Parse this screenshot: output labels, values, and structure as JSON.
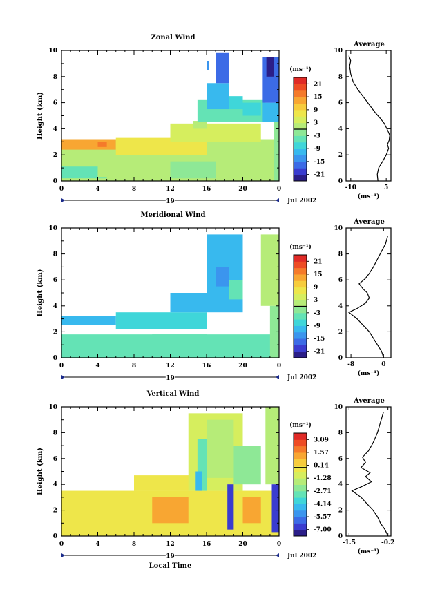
{
  "chart_data": [
    {
      "type": "heatmap",
      "title": "Zonal Wind",
      "ylabel": "Height (km)",
      "xlabel": "",
      "ylim": [
        0,
        10
      ],
      "yticks": [
        "0",
        "2",
        "4",
        "6",
        "8",
        "10"
      ],
      "xlim": [
        0,
        24
      ],
      "xticks": [
        "0",
        "4",
        "8",
        "12",
        "16",
        "20",
        "0"
      ],
      "day_label": "19",
      "date_label": "Jul 2002",
      "colorbar": {
        "unit": "(ms⁻¹)",
        "range": [
          -24,
          24
        ],
        "ticks": [
          "21",
          "15",
          "9",
          "3",
          "-3",
          "-9",
          "-15",
          "-21"
        ],
        "colors": [
          "#2b1e88",
          "#3a3ccf",
          "#3c6be6",
          "#3b95ee",
          "#38b9ee",
          "#3fd6d9",
          "#64e3b5",
          "#8ee896",
          "#b6ec78",
          "#d6ee5e",
          "#eee64a",
          "#f7cc3c",
          "#f8a632",
          "#f57a2a",
          "#ee4c24",
          "#e02a26"
        ]
      },
      "features": [
        {
          "x0": 0,
          "x1": 24,
          "y0": 0,
          "y1": 3.2,
          "v": 2
        },
        {
          "x0": 0,
          "x1": 5,
          "y0": 0.2,
          "y1": 1.1,
          "v": -4
        },
        {
          "x0": 4,
          "x1": 12,
          "y0": 0.3,
          "y1": 1.3,
          "v": 0
        },
        {
          "x0": 12,
          "x1": 17,
          "y0": 0.2,
          "y1": 1.5,
          "v": -1
        },
        {
          "x0": 0,
          "x1": 6,
          "y0": 2.4,
          "y1": 3.2,
          "v": 12
        },
        {
          "x0": 4,
          "x1": 5,
          "y0": 2.6,
          "y1": 3.0,
          "v": 15
        },
        {
          "x0": 6,
          "x1": 16,
          "y0": 2,
          "y1": 3.3,
          "v": 6
        },
        {
          "x0": 12,
          "x1": 22,
          "y0": 3,
          "y1": 4.4,
          "v": 4
        },
        {
          "x0": 14.5,
          "x1": 16,
          "y0": 4,
          "y1": 4.6,
          "v": 2
        },
        {
          "x0": 15,
          "x1": 22.5,
          "y0": 4.5,
          "y1": 6.2,
          "v": -6
        },
        {
          "x0": 16,
          "x1": 18.5,
          "y0": 5.5,
          "y1": 7.5,
          "v": -12
        },
        {
          "x0": 17,
          "x1": 18.5,
          "y0": 7.5,
          "y1": 9.8,
          "v": -17
        },
        {
          "x0": 16,
          "x1": 16.3,
          "y0": 8.5,
          "y1": 9.2,
          "v": -15
        },
        {
          "x0": 18.5,
          "x1": 20,
          "y0": 5.5,
          "y1": 6.5,
          "v": -9
        },
        {
          "x0": 20,
          "x1": 22,
          "y0": 5,
          "y1": 6,
          "v": -8
        },
        {
          "x0": 22.2,
          "x1": 24,
          "y0": 4.5,
          "y1": 6,
          "v": -12
        },
        {
          "x0": 22.2,
          "x1": 24,
          "y0": 6,
          "y1": 9.5,
          "v": -18
        },
        {
          "x0": 22.6,
          "x1": 23.4,
          "y0": 8,
          "y1": 9.5,
          "v": -22
        },
        {
          "x0": 23.4,
          "x1": 24,
          "y0": 0,
          "y1": 4.5,
          "v": -3
        }
      ]
    },
    {
      "type": "heatmap",
      "title": "Meridional Wind",
      "ylabel": "Height (km)",
      "xlabel": "",
      "ylim": [
        0,
        10
      ],
      "yticks": [
        "0",
        "2",
        "4",
        "6",
        "8",
        "10"
      ],
      "xlim": [
        0,
        24
      ],
      "xticks": [
        "0",
        "4",
        "8",
        "12",
        "16",
        "20",
        "0"
      ],
      "day_label": "19",
      "date_label": "Jul 2002",
      "colorbar": {
        "unit": "(ms⁻¹)",
        "range": [
          -24,
          24
        ],
        "ticks": [
          "21",
          "15",
          "9",
          "3",
          "-3",
          "-9",
          "-15",
          "-21"
        ],
        "colors": [
          "#2b1e88",
          "#3a3ccf",
          "#3c6be6",
          "#3b95ee",
          "#38b9ee",
          "#3fd6d9",
          "#64e3b5",
          "#8ee896",
          "#b6ec78",
          "#d6ee5e",
          "#eee64a",
          "#f7cc3c",
          "#f8a632",
          "#f57a2a",
          "#ee4c24",
          "#e02a26"
        ]
      },
      "features": [
        {
          "x0": 0,
          "x1": 24,
          "y0": 0,
          "y1": 1.8,
          "v": -5
        },
        {
          "x0": 0,
          "x1": 6,
          "y0": 2.5,
          "y1": 3.2,
          "v": -12
        },
        {
          "x0": 6,
          "x1": 16,
          "y0": 2.2,
          "y1": 3.5,
          "v": -9
        },
        {
          "x0": 10,
          "x1": 16,
          "y0": 0.3,
          "y1": 1.8,
          "v": -4
        },
        {
          "x0": 12,
          "x1": 16,
          "y0": 3.5,
          "y1": 5,
          "v": -10
        },
        {
          "x0": 16,
          "x1": 20,
          "y0": 3.5,
          "y1": 9.5,
          "v": -10
        },
        {
          "x0": 17,
          "x1": 18.5,
          "y0": 5.5,
          "y1": 7,
          "v": -15
        },
        {
          "x0": 18.5,
          "x1": 20,
          "y0": 4.5,
          "y1": 6,
          "v": -6
        },
        {
          "x0": 22,
          "x1": 24,
          "y0": 4,
          "y1": 9.5,
          "v": 0
        },
        {
          "x0": 23,
          "x1": 24,
          "y0": 0,
          "y1": 4,
          "v": -3
        }
      ]
    },
    {
      "type": "heatmap",
      "title": "Vertical Wind",
      "ylabel": "Height (km)",
      "xlabel": "Local Time",
      "ylim": [
        0,
        10
      ],
      "yticks": [
        "0",
        "2",
        "4",
        "6",
        "8",
        "10"
      ],
      "xlim": [
        0,
        24
      ],
      "xticks": [
        "0",
        "4",
        "8",
        "12",
        "16",
        "20",
        "0"
      ],
      "day_label": "19",
      "date_label": "Jul 2002",
      "colorbar": {
        "unit": "(ms⁻¹)",
        "range": [
          -7.8,
          3.9
        ],
        "ticks": [
          "3.09",
          "1.57",
          "0.14",
          "-1.28",
          "-2.71",
          "-4.14",
          "-5.57",
          "-7.00"
        ],
        "colors": [
          "#2b1e88",
          "#3a3ccf",
          "#3c6be6",
          "#3b95ee",
          "#38b9ee",
          "#3fd6d9",
          "#64e3b5",
          "#8ee896",
          "#b6ec78",
          "#d6ee5e",
          "#eee64a",
          "#f7cc3c",
          "#f8a632",
          "#f57a2a",
          "#ee4c24",
          "#e02a26"
        ]
      },
      "features": [
        {
          "x0": 0,
          "x1": 24,
          "y0": 0,
          "y1": 3.5,
          "v": 0.2
        },
        {
          "x0": 8,
          "x1": 16,
          "y0": 3.5,
          "y1": 4.7,
          "v": 0
        },
        {
          "x0": 10,
          "x1": 14,
          "y0": 1,
          "y1": 3,
          "v": 1
        },
        {
          "x0": 14,
          "x1": 20,
          "y0": 3.5,
          "y1": 9.5,
          "v": -1.2
        },
        {
          "x0": 15,
          "x1": 16,
          "y0": 3.5,
          "y1": 7.5,
          "v": -3
        },
        {
          "x0": 16,
          "x1": 19,
          "y0": 4.5,
          "y1": 9,
          "v": -1.5
        },
        {
          "x0": 19,
          "x1": 22,
          "y0": 4,
          "y1": 7,
          "v": -2.5
        },
        {
          "x0": 18.3,
          "x1": 19,
          "y0": 0.5,
          "y1": 4,
          "v": -7
        },
        {
          "x0": 14.8,
          "x1": 15.5,
          "y0": 3.5,
          "y1": 5,
          "v": -4.5
        },
        {
          "x0": 22.5,
          "x1": 24,
          "y0": 4,
          "y1": 10,
          "v": -1.5
        },
        {
          "x0": 23.2,
          "x1": 24,
          "y0": 0.3,
          "y1": 4,
          "v": -7
        },
        {
          "x0": 20,
          "x1": 22,
          "y0": 1,
          "y1": 3,
          "v": 1.5
        }
      ]
    },
    {
      "type": "line",
      "title": "Average",
      "ylabel": "",
      "xlabel": "(ms⁻¹)",
      "xlim": [
        -12,
        7
      ],
      "xticks": [
        "-10",
        "5"
      ],
      "ylim": [
        0,
        10
      ],
      "yticks": [
        "0",
        "2",
        "4",
        "6",
        "8",
        "10"
      ],
      "x": [
        1.5,
        1.2,
        1.8,
        3.5,
        5,
        6,
        5.5,
        6.2,
        6.5,
        5.8,
        5,
        4.2,
        2.5,
        0.5,
        -2,
        -4.5,
        -7,
        -9,
        -10,
        -10.5,
        -10,
        -10.8
      ],
      "y": [
        0,
        0.5,
        1,
        1.5,
        2,
        2.5,
        2.8,
        3.1,
        3.5,
        3.8,
        4.1,
        4.4,
        4.8,
        5.2,
        5.8,
        6.4,
        7,
        7.6,
        8.2,
        8.8,
        9.2,
        9.6
      ]
    },
    {
      "type": "line",
      "title": "Average",
      "ylabel": "",
      "xlabel": "(ms⁻¹)",
      "xlim": [
        -9.2,
        1.8
      ],
      "xticks": [
        "-8",
        "0"
      ],
      "ylim": [
        0,
        10
      ],
      "yticks": [
        "0",
        "2",
        "4",
        "6",
        "8",
        "10"
      ],
      "x": [
        0,
        -0.5,
        -1.5,
        -2.5,
        -3.5,
        -5,
        -6.5,
        -8.5,
        -6.5,
        -4.5,
        -3.5,
        -4,
        -5,
        -6,
        -4.5,
        -3.5,
        -2.5,
        -1.5,
        -0.5,
        0.5,
        1
      ],
      "y": [
        0,
        0.5,
        1,
        1.5,
        2,
        2.5,
        3,
        3.5,
        3.8,
        4.2,
        4.6,
        5,
        5.3,
        5.7,
        6.1,
        6.5,
        7,
        7.6,
        8.2,
        8.8,
        9.4
      ]
    },
    {
      "type": "line",
      "title": "Average",
      "ylabel": "",
      "xlabel": "(ms⁻¹)",
      "xlim": [
        -1.6,
        -0.1
      ],
      "xticks": [
        "-1.5",
        "-0.2"
      ],
      "ylim": [
        0,
        10
      ],
      "yticks": [
        "0",
        "2",
        "4",
        "6",
        "8",
        "10"
      ],
      "x": [
        -0.2,
        -0.3,
        -0.45,
        -0.55,
        -0.7,
        -0.9,
        -1.1,
        -1.4,
        -1.1,
        -0.75,
        -0.95,
        -0.8,
        -1.1,
        -0.95,
        -1.05,
        -0.85,
        -0.7,
        -0.55,
        -0.45,
        -0.35
      ],
      "y": [
        0,
        0.5,
        1,
        1.5,
        2,
        2.5,
        3,
        3.5,
        3.8,
        4.2,
        4.6,
        4.9,
        5.3,
        5.7,
        6.1,
        6.6,
        7.2,
        8,
        8.8,
        9.6
      ]
    }
  ]
}
